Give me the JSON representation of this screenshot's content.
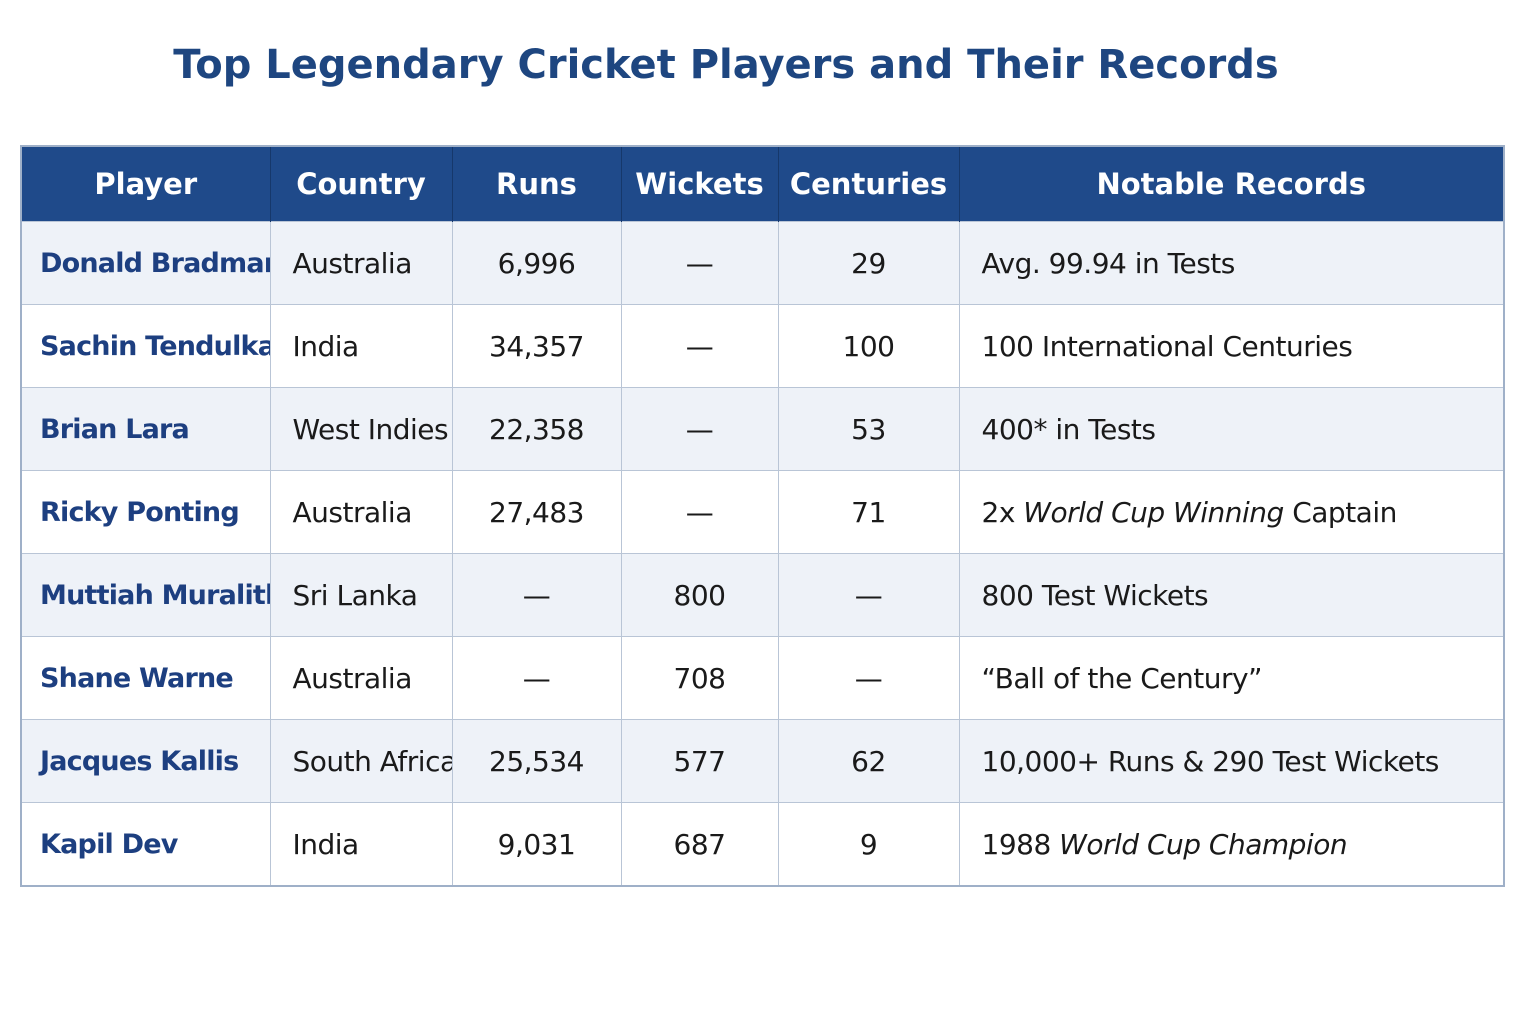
{
  "title": "Top Legendary Cricket Players and Their Records",
  "table": {
    "columns": [
      "Player",
      "Country",
      "Runs",
      "Wickets",
      "Centuries",
      "Notable Records"
    ],
    "rows": [
      [
        "Donald Bradman",
        "Australia",
        "6,996",
        "—",
        "29",
        [
          "Avg. 99.94 in Tests"
        ]
      ],
      [
        "Sachin Tendulkar",
        "India",
        "34,357",
        "—",
        "100",
        [
          "100 International Centuries"
        ]
      ],
      [
        "Brian Lara",
        "West Indies",
        "22,358",
        "—",
        "53",
        [
          "400* in Tests"
        ]
      ],
      [
        "Ricky Ponting",
        "Australia",
        "27,483",
        "—",
        "71",
        [
          "2x ",
          {
            "text": "World Cup Winning",
            "italic": true
          },
          " Captain"
        ]
      ],
      [
        "Muttiah Muralithaan",
        "Sri Lanka",
        "—",
        "800",
        "—",
        [
          "800 Test Wickets"
        ]
      ],
      [
        "Shane Warne",
        "Australia",
        "—",
        "708",
        "—",
        [
          "“Ball of the Century”"
        ]
      ],
      [
        "Jacques Kallis",
        "South Africa",
        "25,534",
        "577",
        "62",
        [
          "10,000+ Runs & 290 Test Wickets"
        ]
      ],
      [
        "Kapil Dev",
        "India",
        "9,031",
        "687",
        "9",
        [
          "1988 ",
          {
            "text": "World Cup Champion",
            "italic": true
          }
        ]
      ]
    ]
  }
}
